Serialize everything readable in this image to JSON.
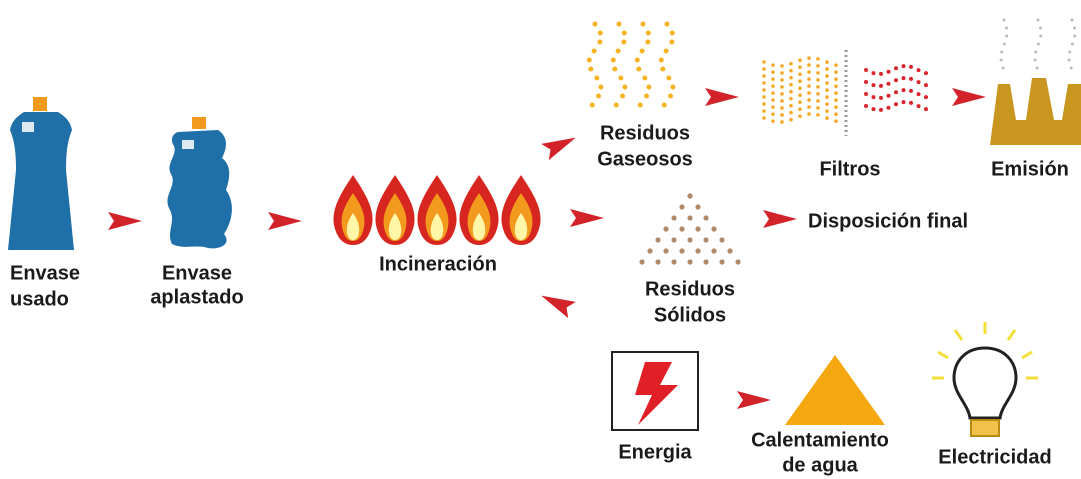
{
  "nodes": [
    {
      "lines": [
        "Envase",
        "usado"
      ]
    },
    {
      "lines": [
        "Envase",
        "aplastado"
      ]
    },
    {
      "lines": [
        "Incineración"
      ]
    },
    {
      "lines": [
        "Residuos",
        "Gaseosos"
      ]
    },
    {
      "lines": [
        "Filtros"
      ]
    },
    {
      "lines": [
        "Emisión"
      ]
    },
    {
      "lines": [
        "Residuos",
        "Sólidos"
      ]
    },
    {
      "lines": [
        "Disposición final"
      ]
    },
    {
      "lines": [
        "Energia"
      ]
    },
    {
      "lines": [
        "Calentamiento",
        "de agua"
      ]
    },
    {
      "lines": [
        "Electricidad"
      ]
    }
  ]
}
